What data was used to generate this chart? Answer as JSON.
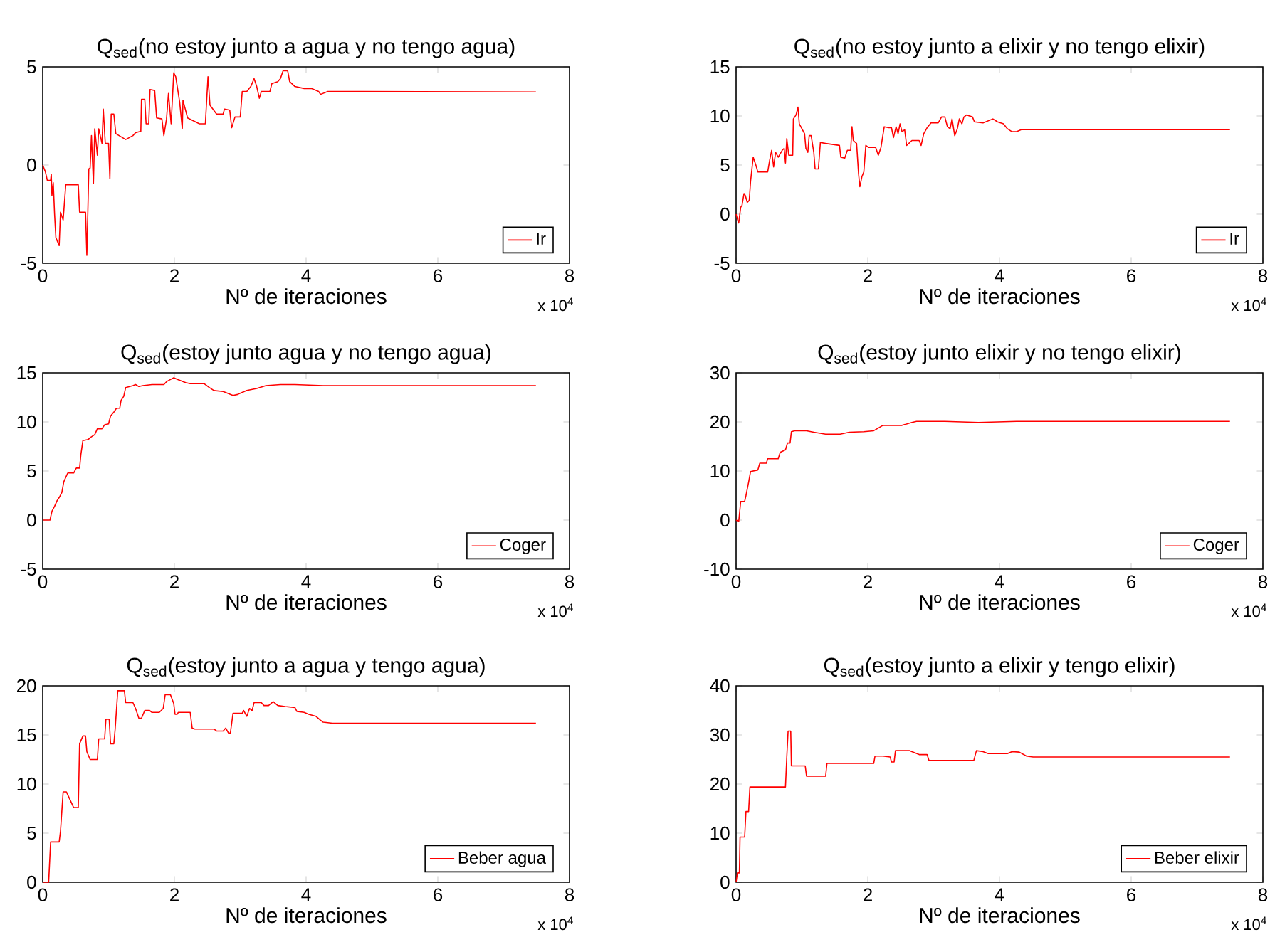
{
  "chart_data": [
    {
      "type": "line",
      "title": "Q$_{sed}$(no estoy junto a agua y no tengo agua)",
      "xlabel": "Nº de iteraciones",
      "annotations": [
        "x 10$^{4}$"
      ],
      "xlim": [
        0,
        8
      ],
      "xticks": [
        0,
        2,
        4,
        6,
        8
      ],
      "ylim": [
        -5,
        5
      ],
      "yticks": [
        -5,
        0,
        5
      ],
      "legend": "bottom right",
      "grid": false,
      "line_style": "solid",
      "series": [
        {
          "name": "Ir",
          "color": "#ff0000",
          "x": [
            0,
            0.04,
            0.07,
            0.12,
            0.13,
            0.14,
            0.16,
            0.18,
            0.2,
            0.25,
            0.27,
            0.31,
            0.35,
            0.54,
            0.56,
            0.65,
            0.67,
            0.7,
            0.72,
            0.74,
            0.77,
            0.79,
            0.83,
            0.85,
            0.9,
            0.92,
            0.95,
            1.0,
            1.02,
            1.04,
            1.08,
            1.11,
            1.26,
            1.37,
            1.41,
            1.49,
            1.5,
            1.55,
            1.57,
            1.61,
            1.63,
            1.7,
            1.73,
            1.81,
            1.84,
            1.88,
            1.91,
            1.95,
            1.99,
            2.02,
            2.08,
            2.12,
            2.13,
            2.2,
            2.38,
            2.47,
            2.51,
            2.54,
            2.64,
            2.74,
            2.76,
            2.84,
            2.87,
            2.92,
            3.0,
            3.03,
            3.1,
            3.16,
            3.21,
            3.25,
            3.29,
            3.32,
            3.45,
            3.48,
            3.57,
            3.61,
            3.65,
            3.72,
            3.75,
            3.83,
            3.97,
            4.08,
            4.19,
            4.22,
            4.33,
            4.44,
            7.49
          ],
          "values": [
            0,
            -0.34,
            -0.78,
            -0.78,
            -0.46,
            -1.55,
            -0.9,
            -2.5,
            -3.7,
            -4.1,
            -2.4,
            -2.8,
            -1.0,
            -1.0,
            -2.4,
            -2.4,
            -4.6,
            -0.2,
            -0.15,
            1.5,
            -0.95,
            1.85,
            0.5,
            1.85,
            1.1,
            2.85,
            1.1,
            1.1,
            -0.7,
            2.6,
            2.6,
            1.6,
            1.3,
            1.5,
            1.65,
            1.72,
            3.35,
            3.35,
            2.1,
            2.1,
            3.85,
            3.8,
            2.4,
            2.35,
            1.5,
            2.35,
            3.65,
            2.1,
            4.7,
            4.5,
            3.2,
            1.85,
            3.3,
            2.4,
            2.1,
            2.1,
            4.5,
            3.05,
            2.6,
            2.6,
            2.85,
            2.8,
            1.9,
            2.45,
            2.45,
            3.75,
            3.75,
            4.0,
            4.4,
            4.0,
            3.4,
            3.75,
            3.75,
            4.15,
            4.25,
            4.4,
            4.8,
            4.8,
            4.25,
            4.0,
            3.9,
            3.9,
            3.75,
            3.6,
            3.75,
            3.75,
            3.72
          ]
        }
      ]
    },
    {
      "type": "line",
      "title": "Q$_{sed}$(no estoy junto a elixir y no tengo elixir)",
      "xlabel": "Nº de iteraciones",
      "annotations": [
        "x 10$^{4}$"
      ],
      "xlim": [
        0,
        8
      ],
      "xticks": [
        0,
        2,
        4,
        6,
        8
      ],
      "ylim": [
        -5,
        15
      ],
      "yticks": [
        -5,
        0,
        5,
        10,
        15
      ],
      "legend": "bottom right",
      "grid": false,
      "line_style": "solid",
      "series": [
        {
          "name": "Ir",
          "color": "#ff0000",
          "x": [
            0,
            0.02,
            0.04,
            0.07,
            0.09,
            0.12,
            0.14,
            0.17,
            0.2,
            0.22,
            0.26,
            0.3,
            0.33,
            0.48,
            0.51,
            0.54,
            0.57,
            0.6,
            0.64,
            0.7,
            0.73,
            0.75,
            0.77,
            0.8,
            0.86,
            0.87,
            0.91,
            0.94,
            0.96,
            1.0,
            1.04,
            1.06,
            1.09,
            1.11,
            1.14,
            1.18,
            1.2,
            1.25,
            1.28,
            1.36,
            1.57,
            1.59,
            1.65,
            1.69,
            1.74,
            1.76,
            1.78,
            1.83,
            1.86,
            1.88,
            1.91,
            1.94,
            1.97,
            2.01,
            2.12,
            2.16,
            2.2,
            2.25,
            2.32,
            2.36,
            2.39,
            2.43,
            2.46,
            2.49,
            2.52,
            2.56,
            2.59,
            2.67,
            2.78,
            2.81,
            2.85,
            2.9,
            2.96,
            3.07,
            3.12,
            3.17,
            3.21,
            3.25,
            3.28,
            3.32,
            3.36,
            3.39,
            3.43,
            3.46,
            3.5,
            3.59,
            3.62,
            3.75,
            3.9,
            3.97,
            4.06,
            4.12,
            4.19,
            4.26,
            4.33,
            4.48,
            7.5
          ],
          "values": [
            0,
            -0.5,
            -0.9,
            0.7,
            0.9,
            2.1,
            1.9,
            1.2,
            1.4,
            3.35,
            5.8,
            5.0,
            4.3,
            4.3,
            5.5,
            6.5,
            4.8,
            6.3,
            5.8,
            6.5,
            6.7,
            5.2,
            7.7,
            6.0,
            6.0,
            9.7,
            10.1,
            10.9,
            9.2,
            8.7,
            8.2,
            6.7,
            6.3,
            8.0,
            8.0,
            6.3,
            4.6,
            4.6,
            7.3,
            7.2,
            7.0,
            5.8,
            5.7,
            6.5,
            6.5,
            8.9,
            7.5,
            7.2,
            4.1,
            2.8,
            3.8,
            4.3,
            7.0,
            6.8,
            6.8,
            6.0,
            6.8,
            8.9,
            8.8,
            8.8,
            7.8,
            8.9,
            8.2,
            9.2,
            8.4,
            8.6,
            7.0,
            7.5,
            7.5,
            7.0,
            8.2,
            8.8,
            9.3,
            9.3,
            9.9,
            9.9,
            8.9,
            8.7,
            9.7,
            8.0,
            8.7,
            9.7,
            9.2,
            9.9,
            10.1,
            9.9,
            9.4,
            9.3,
            9.7,
            9.4,
            9.2,
            8.7,
            8.4,
            8.4,
            8.6,
            8.6,
            8.6
          ]
        }
      ]
    },
    {
      "type": "line",
      "title": "Q$_{sed}$(estoy junto agua y no tengo agua)",
      "xlabel": "Nº de iteraciones",
      "annotations": [
        "x 10$^{4}$"
      ],
      "xlim": [
        0,
        8
      ],
      "xticks": [
        0,
        2,
        4,
        6,
        8
      ],
      "ylim": [
        -5,
        15
      ],
      "yticks": [
        -5,
        0,
        5,
        10,
        15
      ],
      "legend": "bottom right",
      "grid": false,
      "line_style": "solid",
      "series": [
        {
          "name": "Coger",
          "color": "#ff0000",
          "x": [
            0,
            0.11,
            0.14,
            0.18,
            0.22,
            0.25,
            0.29,
            0.32,
            0.38,
            0.47,
            0.51,
            0.56,
            0.58,
            0.61,
            0.69,
            0.72,
            0.79,
            0.83,
            0.9,
            0.94,
            1.0,
            1.03,
            1.08,
            1.12,
            1.17,
            1.19,
            1.23,
            1.26,
            1.37,
            1.41,
            1.46,
            1.52,
            1.66,
            1.84,
            1.88,
            1.99,
            2.06,
            2.17,
            2.24,
            2.45,
            2.53,
            2.6,
            2.74,
            2.89,
            2.96,
            3.1,
            3.25,
            3.39,
            3.61,
            3.83,
            4.26,
            7.49
          ],
          "values": [
            0,
            0,
            0.9,
            1.4,
            2.0,
            2.3,
            2.8,
            3.9,
            4.8,
            4.8,
            5.3,
            5.3,
            6.7,
            8.1,
            8.2,
            8.4,
            8.7,
            9.3,
            9.3,
            9.7,
            9.8,
            10.6,
            11.0,
            11.4,
            11.4,
            12.2,
            12.6,
            13.5,
            13.7,
            13.8,
            13.6,
            13.7,
            13.8,
            13.8,
            14.1,
            14.5,
            14.3,
            14.0,
            13.9,
            13.9,
            13.5,
            13.2,
            13.1,
            12.7,
            12.8,
            13.2,
            13.4,
            13.7,
            13.8,
            13.8,
            13.7,
            13.7
          ]
        }
      ]
    },
    {
      "type": "line",
      "title": "Q$_{sed}$(estoy junto elixir y no tengo elixir)",
      "xlabel": "Nº de iteraciones",
      "annotations": [
        "x 10$^{4}$"
      ],
      "xlim": [
        0,
        8
      ],
      "xticks": [
        0,
        2,
        4,
        6,
        8
      ],
      "ylim": [
        -10,
        30
      ],
      "yticks": [
        -10,
        0,
        10,
        20,
        30
      ],
      "legend": "bottom right",
      "grid": false,
      "line_style": "solid",
      "series": [
        {
          "name": "Coger",
          "color": "#ff0000",
          "x": [
            0,
            0.04,
            0.07,
            0.13,
            0.15,
            0.19,
            0.22,
            0.33,
            0.36,
            0.46,
            0.48,
            0.64,
            0.67,
            0.75,
            0.78,
            0.82,
            0.84,
            0.89,
            1.07,
            1.18,
            1.36,
            1.58,
            1.72,
            1.94,
            2.09,
            2.23,
            2.52,
            2.67,
            2.74,
            3.17,
            3.68,
            4.26,
            7.5
          ],
          "values": [
            0,
            -0.3,
            3.8,
            3.8,
            5.0,
            7.7,
            9.9,
            10.2,
            11.6,
            11.6,
            12.5,
            12.5,
            13.8,
            14.3,
            15.7,
            15.7,
            18.0,
            18.2,
            18.2,
            17.9,
            17.5,
            17.5,
            17.9,
            18.0,
            18.2,
            19.3,
            19.3,
            19.9,
            20.1,
            20.1,
            19.9,
            20.1,
            20.1
          ]
        }
      ]
    },
    {
      "type": "line",
      "title": "Q$_{sed}$(estoy junto a agua y tengo agua)",
      "xlabel": "Nº de iteraciones",
      "annotations": [
        "x 10$^{4}$"
      ],
      "xlim": [
        0,
        8
      ],
      "xticks": [
        0,
        2,
        4,
        6,
        8
      ],
      "ylim": [
        0,
        20
      ],
      "yticks": [
        0,
        5,
        10,
        15,
        20
      ],
      "legend": "bottom right",
      "grid": false,
      "line_style": "solid",
      "series": [
        {
          "name": "Beber agua",
          "color": "#ff0000",
          "x": [
            0,
            0.09,
            0.12,
            0.25,
            0.27,
            0.31,
            0.36,
            0.47,
            0.54,
            0.56,
            0.61,
            0.65,
            0.67,
            0.72,
            0.83,
            0.85,
            0.94,
            0.96,
            1.01,
            1.03,
            1.08,
            1.1,
            1.14,
            1.24,
            1.26,
            1.37,
            1.41,
            1.46,
            1.5,
            1.55,
            1.62,
            1.66,
            1.77,
            1.83,
            1.86,
            1.94,
            1.99,
            2.01,
            2.04,
            2.06,
            2.24,
            2.27,
            2.31,
            2.6,
            2.64,
            2.74,
            2.78,
            2.82,
            2.85,
            2.89,
            3.03,
            3.05,
            3.1,
            3.14,
            3.18,
            3.21,
            3.32,
            3.36,
            3.43,
            3.5,
            3.57,
            3.68,
            3.83,
            3.86,
            3.97,
            4.04,
            4.15,
            4.22,
            4.26,
            4.4,
            7.49
          ],
          "values": [
            0,
            0,
            4.1,
            4.1,
            5.2,
            9.2,
            9.2,
            7.6,
            7.6,
            14.1,
            14.9,
            14.9,
            13.3,
            12.5,
            12.5,
            14.6,
            14.6,
            16.6,
            16.6,
            14.1,
            14.1,
            15.6,
            19.5,
            19.5,
            18.3,
            18.3,
            17.7,
            16.7,
            16.7,
            17.5,
            17.5,
            17.3,
            17.3,
            17.7,
            19.1,
            19.1,
            18.2,
            17.1,
            17.1,
            17.3,
            17.3,
            15.7,
            15.6,
            15.6,
            15.4,
            15.4,
            15.7,
            15.2,
            15.2,
            17.2,
            17.2,
            17.5,
            16.9,
            17.7,
            17.5,
            18.3,
            18.3,
            18.0,
            18.0,
            18.4,
            18.0,
            17.9,
            17.8,
            17.4,
            17.3,
            17.1,
            16.9,
            16.5,
            16.3,
            16.2,
            16.2
          ]
        }
      ]
    },
    {
      "type": "line",
      "title": "Q$_{sed}$(estoy junto a elixir y tengo elixir)",
      "xlabel": "Nº de iteraciones",
      "annotations": [
        "x 10$^{4}$"
      ],
      "xlim": [
        0,
        8
      ],
      "xticks": [
        0,
        2,
        4,
        6,
        8
      ],
      "ylim": [
        0,
        40
      ],
      "yticks": [
        0,
        10,
        20,
        30,
        40
      ],
      "legend": "bottom right",
      "grid": false,
      "line_style": "solid",
      "series": [
        {
          "name": "Beber elixir",
          "color": "#ff0000",
          "x": [
            0,
            0.02,
            0.05,
            0.06,
            0.13,
            0.15,
            0.19,
            0.21,
            0.75,
            0.77,
            0.79,
            0.83,
            0.84,
            1.05,
            1.07,
            1.36,
            1.38,
            2.09,
            2.11,
            2.23,
            2.34,
            2.36,
            2.4,
            2.42,
            2.63,
            2.78,
            2.9,
            2.93,
            3.25,
            3.61,
            3.65,
            3.75,
            3.83,
            4.12,
            4.19,
            4.3,
            4.41,
            4.51,
            7.5
          ],
          "values": [
            0,
            1.9,
            1.9,
            9.2,
            9.2,
            14.4,
            14.4,
            19.4,
            19.4,
            25.5,
            30.8,
            30.8,
            23.7,
            23.7,
            21.6,
            21.6,
            24.2,
            24.2,
            25.7,
            25.7,
            25.5,
            24.5,
            24.5,
            26.8,
            26.8,
            26.0,
            26.0,
            24.8,
            24.8,
            24.8,
            26.8,
            26.6,
            26.2,
            26.2,
            26.6,
            26.5,
            25.7,
            25.5,
            25.5
          ]
        }
      ]
    }
  ]
}
